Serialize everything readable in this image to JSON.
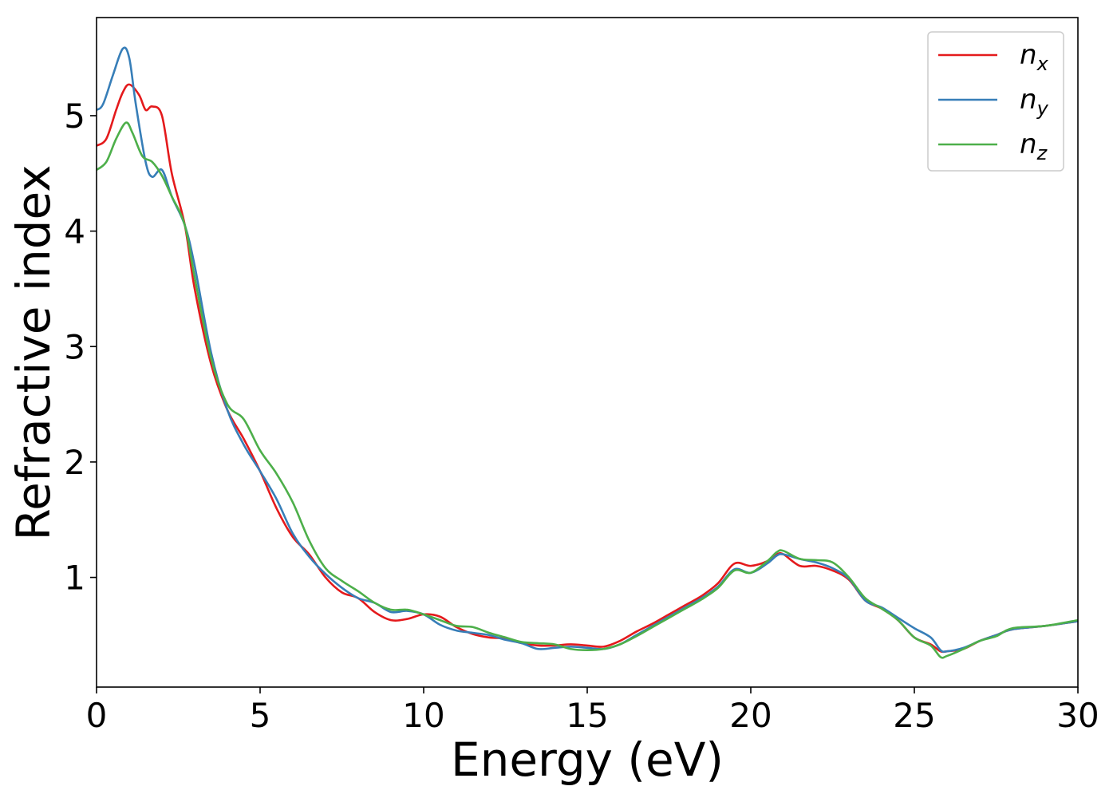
{
  "chart_data": {
    "type": "line",
    "xlabel": "Energy (eV)",
    "ylabel": "Refractive index",
    "xlim": [
      0,
      30
    ],
    "ylim": [
      0.05,
      5.85
    ],
    "xticks": [
      0,
      5,
      10,
      15,
      20,
      25,
      30
    ],
    "yticks": [
      1,
      2,
      3,
      4,
      5
    ],
    "grid": false,
    "legend_position": "top-right",
    "series": [
      {
        "name": "n_x",
        "label_main": "n",
        "label_sub": "x",
        "color": "#e41a1c",
        "points": [
          [
            0,
            4.74
          ],
          [
            0.3,
            4.8
          ],
          [
            0.6,
            5.05
          ],
          [
            0.8,
            5.2
          ],
          [
            1.0,
            5.27
          ],
          [
            1.3,
            5.18
          ],
          [
            1.5,
            5.05
          ],
          [
            1.7,
            5.08
          ],
          [
            2.0,
            5.0
          ],
          [
            2.3,
            4.5
          ],
          [
            2.7,
            4.05
          ],
          [
            3.0,
            3.5
          ],
          [
            3.5,
            2.85
          ],
          [
            4.0,
            2.45
          ],
          [
            4.5,
            2.2
          ],
          [
            5.0,
            1.92
          ],
          [
            5.5,
            1.6
          ],
          [
            6.0,
            1.35
          ],
          [
            6.5,
            1.2
          ],
          [
            7.0,
            1.0
          ],
          [
            7.5,
            0.87
          ],
          [
            8.0,
            0.82
          ],
          [
            8.5,
            0.7
          ],
          [
            9.0,
            0.63
          ],
          [
            9.5,
            0.64
          ],
          [
            10.0,
            0.68
          ],
          [
            10.5,
            0.66
          ],
          [
            11.0,
            0.57
          ],
          [
            11.5,
            0.51
          ],
          [
            12.0,
            0.48
          ],
          [
            12.5,
            0.47
          ],
          [
            13.0,
            0.43
          ],
          [
            13.5,
            0.41
          ],
          [
            14.0,
            0.41
          ],
          [
            14.5,
            0.42
          ],
          [
            15.0,
            0.41
          ],
          [
            15.5,
            0.4
          ],
          [
            16.0,
            0.45
          ],
          [
            16.5,
            0.53
          ],
          [
            17.0,
            0.6
          ],
          [
            17.5,
            0.68
          ],
          [
            18.0,
            0.76
          ],
          [
            18.5,
            0.84
          ],
          [
            19.0,
            0.95
          ],
          [
            19.5,
            1.12
          ],
          [
            20.0,
            1.1
          ],
          [
            20.5,
            1.14
          ],
          [
            20.8,
            1.2
          ],
          [
            21.0,
            1.2
          ],
          [
            21.5,
            1.1
          ],
          [
            22.0,
            1.1
          ],
          [
            22.5,
            1.06
          ],
          [
            23.0,
            0.98
          ],
          [
            23.5,
            0.8
          ],
          [
            24.0,
            0.73
          ],
          [
            24.5,
            0.63
          ],
          [
            25.0,
            0.48
          ],
          [
            25.5,
            0.42
          ],
          [
            25.8,
            0.36
          ],
          [
            26.0,
            0.36
          ],
          [
            26.5,
            0.38
          ],
          [
            27.0,
            0.45
          ],
          [
            27.5,
            0.5
          ],
          [
            28.0,
            0.55
          ],
          [
            29.0,
            0.58
          ],
          [
            30.0,
            0.62
          ]
        ]
      },
      {
        "name": "n_y",
        "label_main": "n",
        "label_sub": "y",
        "color": "#377eb8",
        "points": [
          [
            0,
            5.05
          ],
          [
            0.2,
            5.1
          ],
          [
            0.5,
            5.35
          ],
          [
            0.8,
            5.58
          ],
          [
            1.0,
            5.5
          ],
          [
            1.2,
            5.1
          ],
          [
            1.5,
            4.6
          ],
          [
            1.7,
            4.47
          ],
          [
            2.0,
            4.53
          ],
          [
            2.3,
            4.3
          ],
          [
            2.7,
            4.05
          ],
          [
            3.0,
            3.7
          ],
          [
            3.5,
            2.95
          ],
          [
            4.0,
            2.45
          ],
          [
            4.5,
            2.15
          ],
          [
            5.0,
            1.92
          ],
          [
            5.5,
            1.68
          ],
          [
            6.0,
            1.38
          ],
          [
            6.5,
            1.18
          ],
          [
            7.0,
            1.03
          ],
          [
            7.5,
            0.91
          ],
          [
            8.0,
            0.82
          ],
          [
            8.5,
            0.78
          ],
          [
            9.0,
            0.7
          ],
          [
            9.5,
            0.71
          ],
          [
            10.0,
            0.68
          ],
          [
            10.5,
            0.59
          ],
          [
            11.0,
            0.54
          ],
          [
            11.5,
            0.52
          ],
          [
            12.0,
            0.5
          ],
          [
            12.5,
            0.46
          ],
          [
            13.0,
            0.43
          ],
          [
            13.5,
            0.38
          ],
          [
            14.0,
            0.39
          ],
          [
            14.5,
            0.4
          ],
          [
            15.0,
            0.39
          ],
          [
            15.5,
            0.38
          ],
          [
            16.0,
            0.42
          ],
          [
            16.5,
            0.5
          ],
          [
            17.0,
            0.58
          ],
          [
            17.5,
            0.66
          ],
          [
            18.0,
            0.74
          ],
          [
            18.5,
            0.82
          ],
          [
            19.0,
            0.92
          ],
          [
            19.5,
            1.07
          ],
          [
            20.0,
            1.04
          ],
          [
            20.5,
            1.12
          ],
          [
            20.8,
            1.19
          ],
          [
            21.0,
            1.2
          ],
          [
            21.5,
            1.16
          ],
          [
            22.0,
            1.13
          ],
          [
            22.5,
            1.08
          ],
          [
            23.0,
            0.99
          ],
          [
            23.5,
            0.8
          ],
          [
            24.0,
            0.74
          ],
          [
            24.5,
            0.65
          ],
          [
            25.0,
            0.56
          ],
          [
            25.5,
            0.48
          ],
          [
            25.8,
            0.37
          ],
          [
            26.0,
            0.36
          ],
          [
            26.5,
            0.39
          ],
          [
            27.0,
            0.45
          ],
          [
            27.5,
            0.5
          ],
          [
            28.0,
            0.55
          ],
          [
            29.0,
            0.58
          ],
          [
            30.0,
            0.62
          ]
        ]
      },
      {
        "name": "n_z",
        "label_main": "n",
        "label_sub": "z",
        "color": "#4daf4a",
        "points": [
          [
            0,
            4.53
          ],
          [
            0.3,
            4.6
          ],
          [
            0.6,
            4.8
          ],
          [
            0.9,
            4.94
          ],
          [
            1.1,
            4.85
          ],
          [
            1.4,
            4.65
          ],
          [
            1.7,
            4.6
          ],
          [
            2.0,
            4.48
          ],
          [
            2.3,
            4.3
          ],
          [
            2.7,
            4.05
          ],
          [
            3.0,
            3.6
          ],
          [
            3.5,
            2.9
          ],
          [
            4.0,
            2.5
          ],
          [
            4.5,
            2.37
          ],
          [
            5.0,
            2.1
          ],
          [
            5.5,
            1.9
          ],
          [
            6.0,
            1.65
          ],
          [
            6.5,
            1.32
          ],
          [
            7.0,
            1.08
          ],
          [
            7.5,
            0.97
          ],
          [
            8.0,
            0.88
          ],
          [
            8.5,
            0.78
          ],
          [
            9.0,
            0.72
          ],
          [
            9.5,
            0.72
          ],
          [
            10.0,
            0.68
          ],
          [
            10.5,
            0.63
          ],
          [
            11.0,
            0.58
          ],
          [
            11.5,
            0.57
          ],
          [
            12.0,
            0.52
          ],
          [
            12.5,
            0.48
          ],
          [
            13.0,
            0.44
          ],
          [
            13.5,
            0.43
          ],
          [
            14.0,
            0.42
          ],
          [
            14.5,
            0.38
          ],
          [
            15.0,
            0.37
          ],
          [
            15.5,
            0.38
          ],
          [
            16.0,
            0.42
          ],
          [
            16.5,
            0.49
          ],
          [
            17.0,
            0.57
          ],
          [
            17.5,
            0.65
          ],
          [
            18.0,
            0.73
          ],
          [
            18.5,
            0.81
          ],
          [
            19.0,
            0.91
          ],
          [
            19.5,
            1.06
          ],
          [
            20.0,
            1.04
          ],
          [
            20.5,
            1.14
          ],
          [
            20.8,
            1.22
          ],
          [
            21.0,
            1.23
          ],
          [
            21.5,
            1.16
          ],
          [
            22.0,
            1.15
          ],
          [
            22.5,
            1.13
          ],
          [
            23.0,
            1.0
          ],
          [
            23.5,
            0.82
          ],
          [
            24.0,
            0.73
          ],
          [
            24.5,
            0.63
          ],
          [
            25.0,
            0.48
          ],
          [
            25.5,
            0.41
          ],
          [
            25.8,
            0.31
          ],
          [
            26.0,
            0.32
          ],
          [
            26.5,
            0.38
          ],
          [
            27.0,
            0.45
          ],
          [
            27.5,
            0.49
          ],
          [
            28.0,
            0.56
          ],
          [
            29.0,
            0.58
          ],
          [
            30.0,
            0.63
          ]
        ]
      }
    ]
  }
}
